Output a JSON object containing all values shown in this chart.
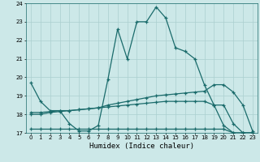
{
  "xlabel": "Humidex (Indice chaleur)",
  "bg_color": "#cce8e8",
  "line_color": "#1a6b6b",
  "grid_color": "#aacfcf",
  "xlim": [
    -0.5,
    23.5
  ],
  "ylim": [
    17,
    24
  ],
  "yticks": [
    17,
    18,
    19,
    20,
    21,
    22,
    23,
    24
  ],
  "xticks": [
    0,
    1,
    2,
    3,
    4,
    5,
    6,
    7,
    8,
    9,
    10,
    11,
    12,
    13,
    14,
    15,
    16,
    17,
    18,
    19,
    20,
    21,
    22,
    23
  ],
  "series": [
    {
      "x": [
        0,
        1,
        2,
        3,
        4,
        5,
        6,
        7,
        8,
        9,
        10,
        11,
        12,
        13,
        14,
        15,
        16,
        17,
        18,
        19,
        20,
        21,
        22,
        23
      ],
      "y": [
        19.7,
        18.7,
        18.2,
        18.2,
        17.5,
        17.1,
        17.1,
        17.4,
        19.9,
        22.6,
        21.0,
        23.0,
        23.0,
        23.8,
        23.2,
        21.6,
        21.4,
        21.0,
        19.6,
        18.5,
        17.4,
        17.0,
        17.0,
        17.0
      ]
    },
    {
      "x": [
        0,
        1,
        2,
        3,
        4,
        5,
        6,
        7,
        8,
        9,
        10,
        11,
        12,
        13,
        14,
        15,
        16,
        17,
        18,
        19,
        20,
        21,
        22,
        23
      ],
      "y": [
        18.0,
        18.0,
        18.1,
        18.15,
        18.2,
        18.25,
        18.3,
        18.35,
        18.5,
        18.6,
        18.7,
        18.8,
        18.9,
        19.0,
        19.05,
        19.1,
        19.15,
        19.2,
        19.25,
        19.6,
        19.6,
        19.2,
        18.5,
        17.1
      ]
    },
    {
      "x": [
        0,
        1,
        2,
        3,
        4,
        5,
        6,
        7,
        8,
        9,
        10,
        11,
        12,
        13,
        14,
        15,
        16,
        17,
        18,
        19,
        20,
        21,
        22,
        23
      ],
      "y": [
        17.2,
        17.2,
        17.2,
        17.2,
        17.2,
        17.2,
        17.2,
        17.2,
        17.2,
        17.2,
        17.2,
        17.2,
        17.2,
        17.2,
        17.2,
        17.2,
        17.2,
        17.2,
        17.2,
        17.2,
        17.2,
        17.0,
        17.0,
        17.0
      ]
    },
    {
      "x": [
        0,
        1,
        2,
        3,
        4,
        5,
        6,
        7,
        8,
        9,
        10,
        11,
        12,
        13,
        14,
        15,
        16,
        17,
        18,
        19,
        20,
        21,
        22,
        23
      ],
      "y": [
        18.1,
        18.1,
        18.15,
        18.2,
        18.2,
        18.25,
        18.3,
        18.35,
        18.4,
        18.45,
        18.5,
        18.55,
        18.6,
        18.65,
        18.7,
        18.7,
        18.7,
        18.7,
        18.7,
        18.5,
        18.5,
        17.5,
        17.0,
        17.0
      ]
    }
  ]
}
